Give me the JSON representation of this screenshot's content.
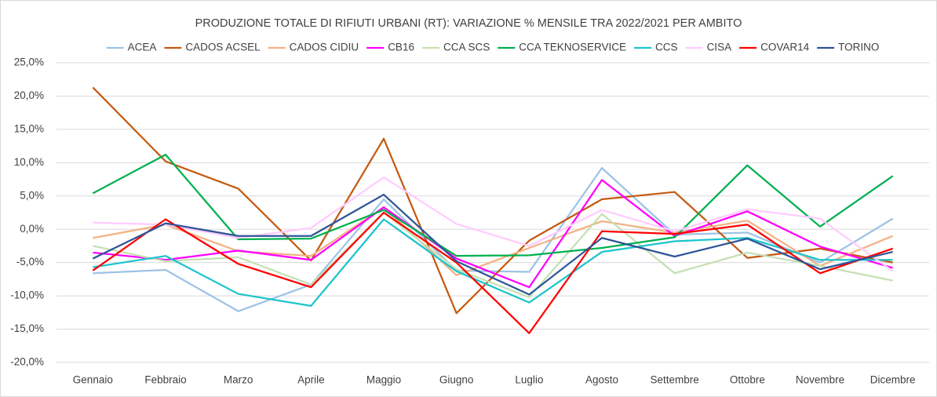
{
  "chart_data": {
    "type": "line",
    "title": "PRODUZIONE TOTALE DI RIFIUTI URBANI (RT): VARIAZIONE % MENSILE TRA 2022/2021 PER AMBITO",
    "categories": [
      "Gennaio",
      "Febbraio",
      "Marzo",
      "Aprile",
      "Maggio",
      "Giugno",
      "Luglio",
      "Agosto",
      "Settembre",
      "Ottobre",
      "Novembre",
      "Dicembre"
    ],
    "ylim": [
      -20,
      25
    ],
    "yticks": [
      {
        "value": -20,
        "label": "-20,0%"
      },
      {
        "value": -15,
        "label": "-15,0%"
      },
      {
        "value": -10,
        "label": "-10,0%"
      },
      {
        "value": -5,
        "label": "-5,0%"
      },
      {
        "value": 0,
        "label": "0,0%"
      },
      {
        "value": 5,
        "label": "5,0%"
      },
      {
        "value": 10,
        "label": "10,0%"
      },
      {
        "value": 15,
        "label": "15,0%"
      },
      {
        "value": 20,
        "label": "20,0%"
      },
      {
        "value": 25,
        "label": "25,0%"
      }
    ],
    "grid": true,
    "legend": "top",
    "series": [
      {
        "name": "ACEA",
        "color": "#9dc3e6",
        "values": [
          -6.6,
          -6.1,
          -12.3,
          -8.3,
          4.5,
          -6.2,
          -6.4,
          9.2,
          -0.8,
          -0.5,
          -5.0,
          1.6
        ]
      },
      {
        "name": "CADOS ACSEL",
        "color": "#c55a11",
        "values": [
          21.3,
          10.2,
          6.1,
          -4.7,
          13.6,
          -12.6,
          -1.7,
          4.5,
          5.6,
          -4.3,
          -2.9,
          -5.0
        ]
      },
      {
        "name": "CADOS CIDIU",
        "color": "#f4b183",
        "values": [
          -1.3,
          0.7,
          -3.3,
          -4.0,
          3.3,
          -6.9,
          -2.8,
          1.2,
          -0.5,
          1.3,
          -5.5,
          -1.0
        ]
      },
      {
        "name": "CB16",
        "color": "#ff00ff",
        "values": [
          -3.5,
          -4.6,
          -3.2,
          -4.6,
          3.3,
          -4.4,
          -8.7,
          7.4,
          -1.0,
          2.7,
          -2.6,
          -5.8
        ]
      },
      {
        "name": "CCA SCS",
        "color": "#c5e0b4",
        "values": [
          -2.5,
          -4.8,
          -4.2,
          -8.3,
          2.5,
          -6.0,
          -10.2,
          2.3,
          -6.6,
          -3.5,
          -5.5,
          -7.7
        ]
      },
      {
        "name": "CCA TEKNOSERVICE",
        "color": "#00b050",
        "values": [
          5.4,
          11.2,
          -1.5,
          -1.4,
          2.9,
          -4.0,
          -3.9,
          -2.8,
          -1.2,
          9.6,
          0.4,
          8.0
        ]
      },
      {
        "name": "CCS",
        "color": "#1cc4cc",
        "values": [
          -5.7,
          -4.0,
          -9.7,
          -11.5,
          1.5,
          -6.3,
          -11.0,
          -3.4,
          -1.8,
          -1.3,
          -4.6,
          -4.6
        ]
      },
      {
        "name": "CISA",
        "color": "#ffccff",
        "values": [
          1.0,
          0.7,
          -1.3,
          0.2,
          7.8,
          0.8,
          -2.5,
          2.9,
          -0.3,
          3.0,
          1.6,
          -6.3
        ]
      },
      {
        "name": "COVAR14",
        "color": "#ff0000",
        "values": [
          -6.2,
          1.5,
          -5.2,
          -8.7,
          2.5,
          -5.0,
          -15.6,
          -0.3,
          -0.7,
          0.7,
          -6.6,
          -2.9
        ]
      },
      {
        "name": "TORINO",
        "color": "#2f5597",
        "values": [
          -4.4,
          0.9,
          -1.0,
          -1.0,
          5.2,
          -4.8,
          -9.8,
          -1.3,
          -4.1,
          -1.4,
          -6.0,
          -3.4
        ]
      }
    ]
  }
}
